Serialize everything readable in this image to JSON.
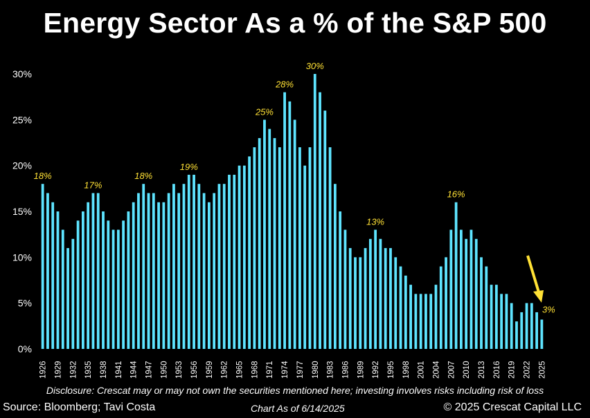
{
  "chart_data": {
    "type": "bar",
    "title": "Energy Sector As a % of the S&P 500",
    "xlabel": "",
    "ylabel": "",
    "ylim": [
      0,
      30
    ],
    "yticks": [
      "0%",
      "5%",
      "10%",
      "15%",
      "20%",
      "25%",
      "30%"
    ],
    "start_year": 1926,
    "tick_label_years": [
      "1926",
      "1929",
      "1932",
      "1935",
      "1938",
      "1941",
      "1944",
      "1947",
      "1950",
      "1953",
      "1956",
      "1959",
      "1962",
      "1965",
      "1968",
      "1971",
      "1974",
      "1977",
      "1980",
      "1983",
      "1986",
      "1989",
      "1992",
      "1995",
      "1998",
      "2001",
      "2004",
      "2007",
      "2010",
      "2013",
      "2016",
      "2019",
      "2022",
      "2025"
    ],
    "values": [
      18,
      17,
      16,
      15,
      13,
      11,
      12,
      14,
      15,
      16,
      17,
      17,
      15,
      14,
      13,
      13,
      14,
      15,
      16,
      17,
      18,
      17,
      17,
      16,
      16,
      17,
      18,
      17,
      18,
      19,
      19,
      18,
      17,
      16,
      17,
      18,
      18,
      19,
      19,
      20,
      20,
      21,
      22,
      23,
      25,
      24,
      23,
      22,
      28,
      27,
      25,
      22,
      20,
      22,
      30,
      28,
      26,
      22,
      18,
      15,
      13,
      11,
      10,
      10,
      11,
      12,
      13,
      12,
      11,
      11,
      10,
      9,
      8,
      7,
      6,
      6,
      6,
      6,
      7,
      9,
      10,
      13,
      16,
      13,
      12,
      13,
      12,
      10,
      9,
      7,
      7,
      6,
      6,
      5,
      3,
      4,
      5,
      5,
      4,
      3.2
    ],
    "peak_labels": [
      {
        "year": 1926,
        "label": "18%"
      },
      {
        "year": 1936,
        "label": "17%"
      },
      {
        "year": 1946,
        "label": "18%"
      },
      {
        "year": 1955,
        "label": "19%"
      },
      {
        "year": 1970,
        "label": "25%"
      },
      {
        "year": 1974,
        "label": "28%"
      },
      {
        "year": 1980,
        "label": "30%"
      },
      {
        "year": 1992,
        "label": "13%"
      },
      {
        "year": 2008,
        "label": "16%"
      },
      {
        "year": 2025,
        "label": "3%"
      }
    ]
  },
  "footer": {
    "disclosure": "Disclosure: Crescat may or may not own the securities mentioned here; investing involves risks including risk of loss",
    "source": "Source: Bloomberg; Tavi Costa",
    "as_of": "Chart As of 6/14/2025",
    "copyright": "© 2025 Crescat Capital LLC"
  },
  "colors": {
    "bar": "#5ee4ff",
    "annotation": "#ffe135",
    "background": "#000000"
  }
}
